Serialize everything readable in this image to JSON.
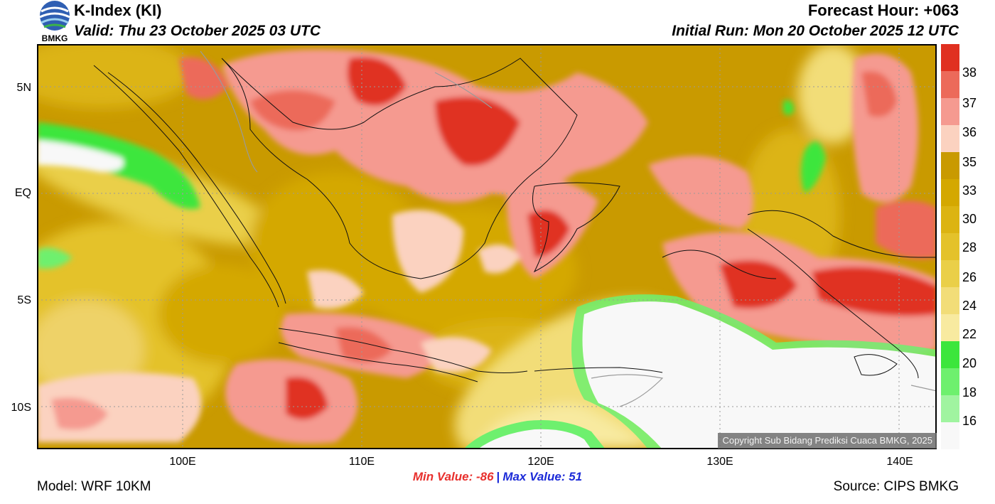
{
  "header": {
    "title": "K-Index (KI)",
    "valid": "Valid: Thu 23 October 2025 03 UTC",
    "forecast_hour": "Forecast Hour: +063",
    "initial_run": "Initial Run: Mon 20 October 2025 12 UTC",
    "logo_text": "BMKG"
  },
  "map": {
    "lat_labels": [
      "5N",
      "EQ",
      "5S",
      "10S"
    ],
    "lon_labels": [
      "100E",
      "110E",
      "120E",
      "130E",
      "140E"
    ],
    "copyright": "Copyright Sub Bidang Prediksi Cuaca BMKG, 2025"
  },
  "legend": {
    "labels": [
      "38",
      "37",
      "36",
      "35",
      "33",
      "30",
      "28",
      "26",
      "24",
      "22",
      "20",
      "18",
      "16"
    ],
    "colors": [
      "#e03020",
      "#ec6a5a",
      "#f59a90",
      "#fbd2c0",
      "#c99a00",
      "#d4a800",
      "#dcb412",
      "#e4c22a",
      "#eacf48",
      "#f2dd78",
      "#f8eaa0",
      "#3ce63c",
      "#6ef06e",
      "#a0f4a0",
      "#f8f8f8"
    ]
  },
  "footer": {
    "min_label": "Min Value: -86",
    "max_label": "Max Value:  51",
    "separator": "|",
    "model": "Model: WRF 10KM",
    "source": "Source: CIPS BMKG"
  }
}
